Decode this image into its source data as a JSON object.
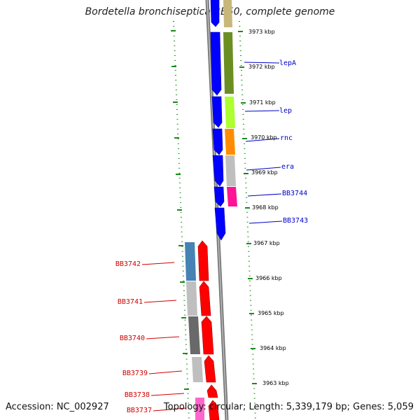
{
  "title": "Bordetella bronchiseptica RB50, complete genome",
  "footer": {
    "accession": "Accession: NC_002927",
    "summary": "Topology: circular; Length: 5,339,179 bp; Genes: 5,059"
  },
  "scale_labels": [
    "3973 kbp",
    "3972 kbp",
    "3971 kbp",
    "3970 kbp",
    "3969 kbp",
    "3968 kbp",
    "3967 kbp",
    "3966 kbp",
    "3965 kbp",
    "3964 kbp",
    "3963 kbp"
  ],
  "genes_reverse": [
    "BB3742",
    "BB3741",
    "BB3740",
    "BB3739",
    "BB3738",
    "BB3737"
  ],
  "genes_forward": [
    "lepA",
    "lep",
    "rnc",
    "era",
    "BB3744",
    "BB3743"
  ],
  "colors": {
    "forward_gene": "#0000ff",
    "reverse_gene": "#ff0000",
    "backbone": "#888888",
    "ticks": "#1a8a1a",
    "forward_label": "#0000c8",
    "reverse_label": "#d00000"
  }
}
